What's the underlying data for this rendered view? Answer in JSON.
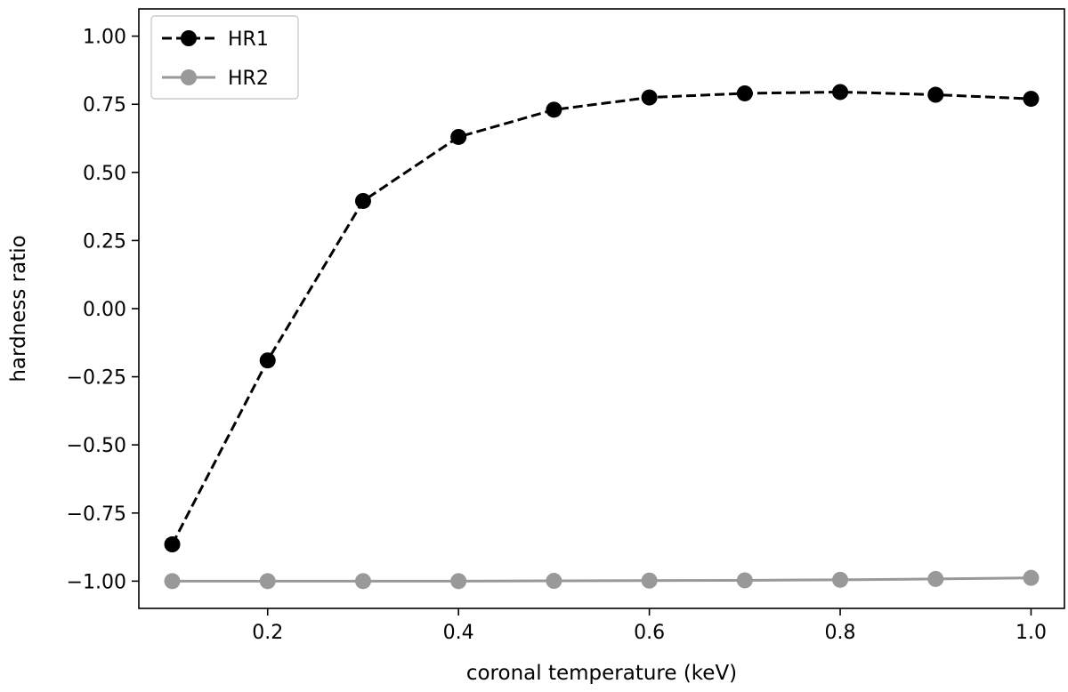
{
  "chart_data": {
    "type": "line",
    "xlabel": "coronal temperature (keV)",
    "ylabel": "hardness ratio",
    "xlim": [
      0.065,
      1.035
    ],
    "ylim": [
      -1.1,
      1.1
    ],
    "xticks": [
      0.2,
      0.4,
      0.6,
      0.8,
      1.0
    ],
    "xtick_labels": [
      "0.2",
      "0.4",
      "0.6",
      "0.8",
      "1.0"
    ],
    "yticks": [
      1.0,
      0.75,
      0.5,
      0.25,
      0.0,
      -0.25,
      -0.5,
      -0.75,
      -1.0
    ],
    "ytick_labels": [
      "1.00",
      "0.75",
      "0.50",
      "0.25",
      "0.00",
      "−0.25",
      "−0.50",
      "−0.75",
      "−1.00"
    ],
    "grid": false,
    "legend_position": "top-left",
    "x": [
      0.1,
      0.2,
      0.3,
      0.4,
      0.5,
      0.6,
      0.7,
      0.8,
      0.9,
      1.0
    ],
    "series": [
      {
        "name": "HR1",
        "values": [
          -0.865,
          -0.19,
          0.395,
          0.63,
          0.73,
          0.775,
          0.79,
          0.795,
          0.785,
          0.77
        ],
        "color": "#000000",
        "line_style": "dashed",
        "marker": "circle"
      },
      {
        "name": "HR2",
        "values": [
          -1.0,
          -1.0,
          -1.0,
          -1.0,
          -0.999,
          -0.998,
          -0.997,
          -0.995,
          -0.992,
          -0.988
        ],
        "color": "#999999",
        "line_style": "solid",
        "marker": "circle"
      }
    ]
  }
}
